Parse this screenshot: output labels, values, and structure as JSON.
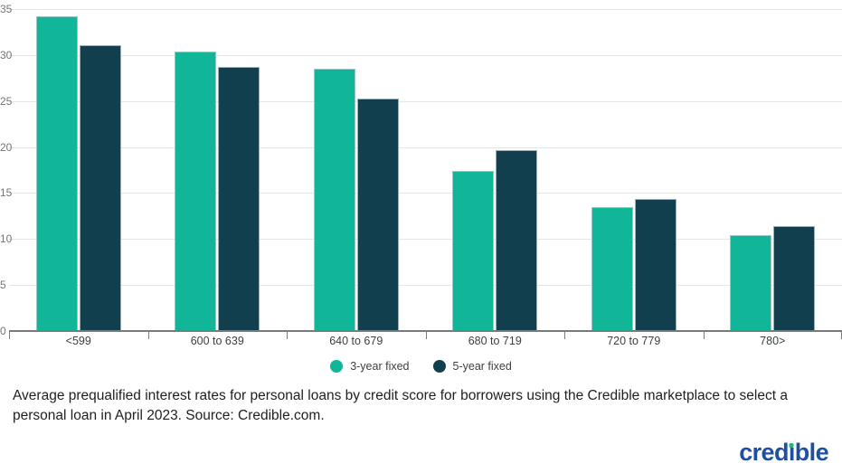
{
  "chart_data": {
    "type": "bar",
    "title": "",
    "xlabel": "",
    "ylabel": "",
    "categories": [
      "<599",
      "600 to 639",
      "640 to 679",
      "680 to 719",
      "720 to 779",
      "780>"
    ],
    "series": [
      {
        "name": "3-year fixed",
        "color": "#11b598",
        "values": [
          34.2,
          30.4,
          28.5,
          17.4,
          13.5,
          10.4
        ]
      },
      {
        "name": "5-year fixed",
        "color": "#123f4d",
        "values": [
          31.1,
          28.7,
          25.3,
          19.7,
          14.4,
          11.4
        ]
      }
    ],
    "ylim": [
      0,
      35
    ],
    "yticks": [
      0,
      5,
      10,
      15,
      20,
      25,
      30,
      35
    ],
    "grid": true,
    "legend_position": "bottom"
  },
  "caption": "Average prequalified interest rates for personal loans by credit score for borrowers using the Credible marketplace to select a personal loan in April 2023. Source: Credible.com.",
  "logo": {
    "text": "credible",
    "brand_color": "#1e4fa1",
    "dot_color": "#2bb673"
  }
}
